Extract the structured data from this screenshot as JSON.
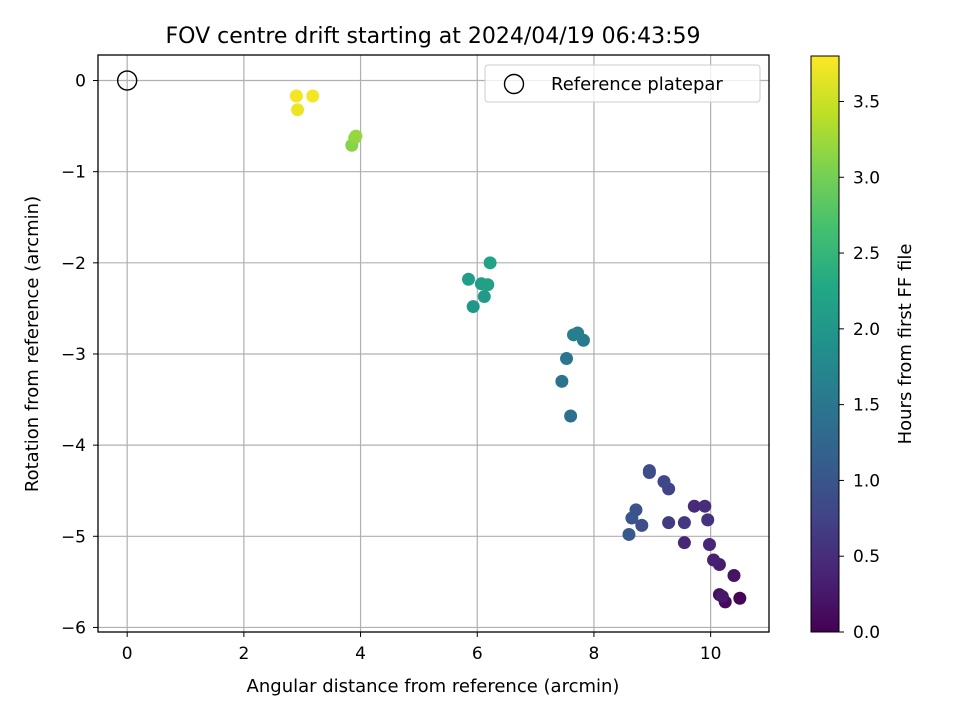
{
  "chart_data": {
    "type": "scatter",
    "title": "FOV centre drift starting at 2024/04/19 06:43:59",
    "xlabel": "Angular distance from reference (arcmin)",
    "ylabel": "Rotation from reference (arcmin)",
    "xlim": [
      -0.5,
      11.0
    ],
    "ylim": [
      -6.05,
      0.28
    ],
    "x_ticks": [
      0,
      2,
      4,
      6,
      8,
      10
    ],
    "y_ticks": [
      0,
      -1,
      -2,
      -3,
      -4,
      -5,
      -6
    ],
    "x_tick_labels": [
      "0",
      "2",
      "4",
      "6",
      "8",
      "10"
    ],
    "y_tick_labels": [
      "0",
      "−1",
      "−2",
      "−3",
      "−4",
      "−5",
      "−6"
    ],
    "grid": true,
    "legend": {
      "position": "top-right",
      "entries": [
        {
          "label": "Reference platepar",
          "marker": "open-circle"
        }
      ]
    },
    "reference_point": {
      "x": 0,
      "y": 0
    },
    "colorbar": {
      "label": "Hours from first FF file",
      "colormap": "viridis",
      "range": [
        0.0,
        3.8
      ],
      "ticks": [
        0.0,
        0.5,
        1.0,
        1.5,
        2.0,
        2.5,
        3.0,
        3.5
      ],
      "tick_labels": [
        "0.0",
        "0.5",
        "1.0",
        "1.5",
        "2.0",
        "2.5",
        "3.0",
        "3.5"
      ]
    },
    "points": [
      {
        "x": 10.5,
        "y": -5.68,
        "h": 0.05
      },
      {
        "x": 10.25,
        "y": -5.72,
        "h": 0.1
      },
      {
        "x": 10.15,
        "y": -5.64,
        "h": 0.15
      },
      {
        "x": 10.4,
        "y": -5.43,
        "h": 0.2
      },
      {
        "x": 10.2,
        "y": -5.66,
        "h": 0.25
      },
      {
        "x": 10.15,
        "y": -5.31,
        "h": 0.3
      },
      {
        "x": 10.05,
        "y": -5.26,
        "h": 0.35
      },
      {
        "x": 9.55,
        "y": -5.07,
        "h": 0.4
      },
      {
        "x": 9.98,
        "y": -5.09,
        "h": 0.42
      },
      {
        "x": 9.72,
        "y": -4.67,
        "h": 0.45
      },
      {
        "x": 9.9,
        "y": -4.67,
        "h": 0.5
      },
      {
        "x": 9.95,
        "y": -4.82,
        "h": 0.55
      },
      {
        "x": 9.55,
        "y": -4.85,
        "h": 0.6
      },
      {
        "x": 9.28,
        "y": -4.85,
        "h": 0.65
      },
      {
        "x": 9.28,
        "y": -4.48,
        "h": 0.75
      },
      {
        "x": 9.2,
        "y": -4.4,
        "h": 0.8
      },
      {
        "x": 8.95,
        "y": -4.3,
        "h": 0.85
      },
      {
        "x": 8.95,
        "y": -4.28,
        "h": 0.88
      },
      {
        "x": 8.82,
        "y": -4.88,
        "h": 0.9
      },
      {
        "x": 8.72,
        "y": -4.71,
        "h": 0.95
      },
      {
        "x": 8.65,
        "y": -4.8,
        "h": 1.0
      },
      {
        "x": 8.6,
        "y": -4.98,
        "h": 1.05
      },
      {
        "x": 7.6,
        "y": -3.68,
        "h": 1.4
      },
      {
        "x": 7.45,
        "y": -3.3,
        "h": 1.45
      },
      {
        "x": 7.53,
        "y": -3.05,
        "h": 1.48
      },
      {
        "x": 7.82,
        "y": -2.85,
        "h": 1.55
      },
      {
        "x": 7.72,
        "y": -2.77,
        "h": 1.58
      },
      {
        "x": 7.65,
        "y": -2.79,
        "h": 1.6
      },
      {
        "x": 5.93,
        "y": -2.48,
        "h": 2.0
      },
      {
        "x": 6.12,
        "y": -2.37,
        "h": 2.05
      },
      {
        "x": 5.85,
        "y": -2.18,
        "h": 2.1
      },
      {
        "x": 6.07,
        "y": -2.23,
        "h": 2.12
      },
      {
        "x": 6.18,
        "y": -2.24,
        "h": 2.15
      },
      {
        "x": 6.22,
        "y": -2.0,
        "h": 2.2
      },
      {
        "x": 3.85,
        "y": -0.71,
        "h": 3.1
      },
      {
        "x": 3.9,
        "y": -0.63,
        "h": 3.15
      },
      {
        "x": 3.92,
        "y": -0.61,
        "h": 3.2
      },
      {
        "x": 2.92,
        "y": -0.32,
        "h": 3.7
      },
      {
        "x": 2.9,
        "y": -0.17,
        "h": 3.75
      },
      {
        "x": 3.18,
        "y": -0.17,
        "h": 3.75
      }
    ]
  }
}
